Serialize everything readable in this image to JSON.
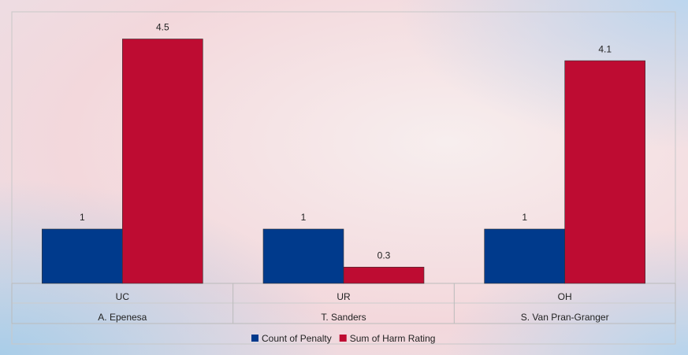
{
  "chart_data": {
    "type": "bar",
    "categories": [
      "UC",
      "UR",
      "OH"
    ],
    "category_groups": [
      "A. Epenesa",
      "T. Sanders",
      "S. Van Pran-Granger"
    ],
    "series": [
      {
        "name": "Count of Penalty",
        "color": "#003a8c",
        "values": [
          1,
          1,
          1
        ]
      },
      {
        "name": "Sum of Harm Rating",
        "color": "#be0c32",
        "values": [
          4.5,
          0.3,
          4.1
        ]
      }
    ],
    "ylim": [
      0,
      5
    ],
    "legend": "bottom"
  }
}
